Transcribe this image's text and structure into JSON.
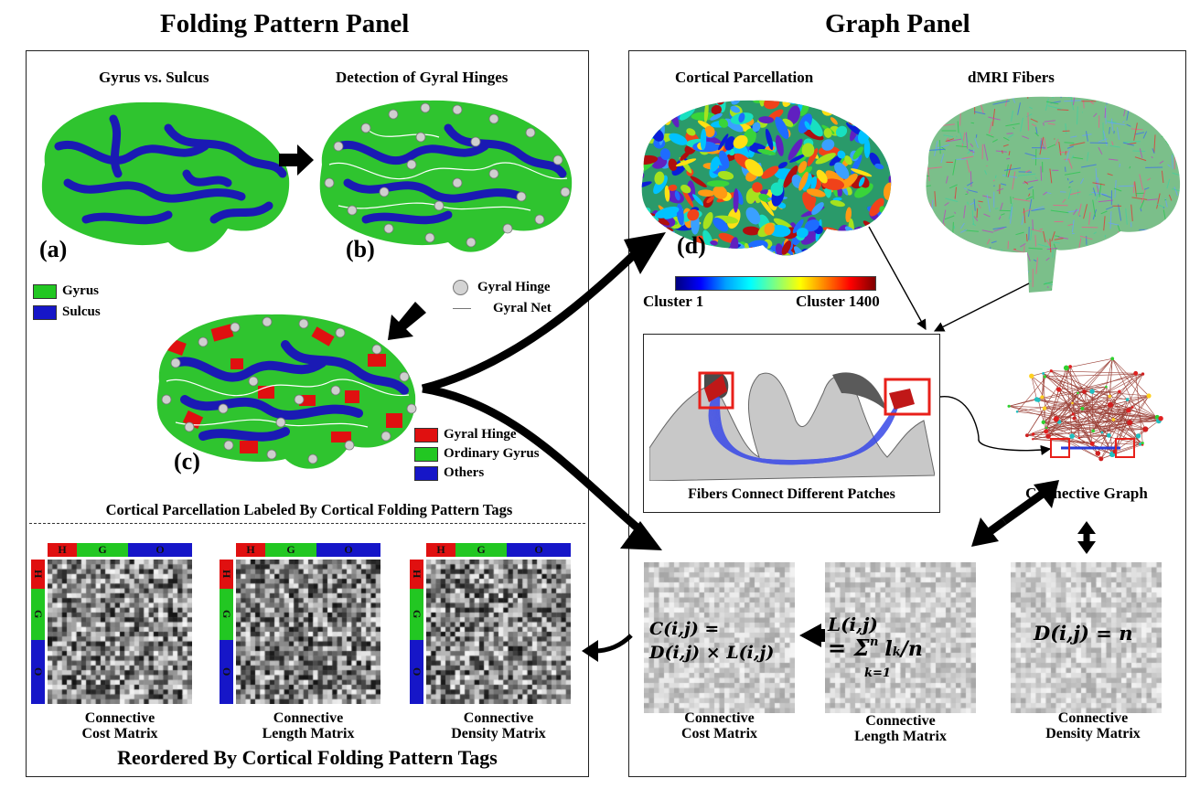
{
  "left_panel": {
    "title": "Folding Pattern Panel",
    "sub_a": "Gyrus vs. Sulcus",
    "sub_b": "Detection of Gyral Hinges",
    "label_a": "(a)",
    "label_b": "(b)",
    "label_c": "(c)",
    "legend_ab": [
      {
        "label": "Gyrus",
        "color": "#22c722"
      },
      {
        "label": "Sulcus",
        "color": "#1616c8"
      }
    ],
    "legend_hinge": "Gyral Hinge",
    "legend_net": "Gyral Net",
    "legend_c": [
      {
        "label": "Gyral Hinge",
        "color": "#e01010"
      },
      {
        "label": "Ordinary Gyrus",
        "color": "#22c722"
      },
      {
        "label": "Others",
        "color": "#1616c8"
      }
    ],
    "section_title": "Cortical Parcellation Labeled By Cortical Folding Pattern Tags",
    "tags": [
      "H",
      "G",
      "O"
    ],
    "matrices": [
      {
        "line1": "Connective",
        "line2": "Cost Matrix"
      },
      {
        "line1": "Connective",
        "line2": "Length Matrix"
      },
      {
        "line1": "Connective",
        "line2": "Density Matrix"
      }
    ],
    "footer": "Reordered By Cortical Folding Pattern Tags"
  },
  "right_panel": {
    "title": "Graph Panel",
    "sub_parcellation": "Cortical Parcellation",
    "sub_fibers": "dMRI Fibers",
    "label_d": "(d)",
    "colorbar_min": "Cluster 1",
    "colorbar_max": "Cluster 1400",
    "fibers_caption": "Fibers Connect Different Patches",
    "graph_caption": "Connective Graph",
    "formula_cost_1": "C(i,j) =",
    "formula_cost_2": "D(i,j) × L(i,j)",
    "formula_length_1": "L(i,j)",
    "formula_length_2": "= Σ",
    "formula_length_sup": "n",
    "formula_length_sub": "k=1",
    "formula_length_3": "l",
    "formula_length_3sub": "k",
    "formula_length_4": "/n",
    "formula_density": "D(i,j) = n",
    "matrices": [
      {
        "line1": "Connective",
        "line2": "Cost Matrix"
      },
      {
        "line1": "Connective",
        "line2": "Length Matrix"
      },
      {
        "line1": "Connective",
        "line2": "Density Matrix"
      }
    ]
  },
  "colors": {
    "hinge": "#e01010",
    "gyrus": "#22c722",
    "sulcus": "#1616c8",
    "highlight_box": "#e8201a"
  }
}
